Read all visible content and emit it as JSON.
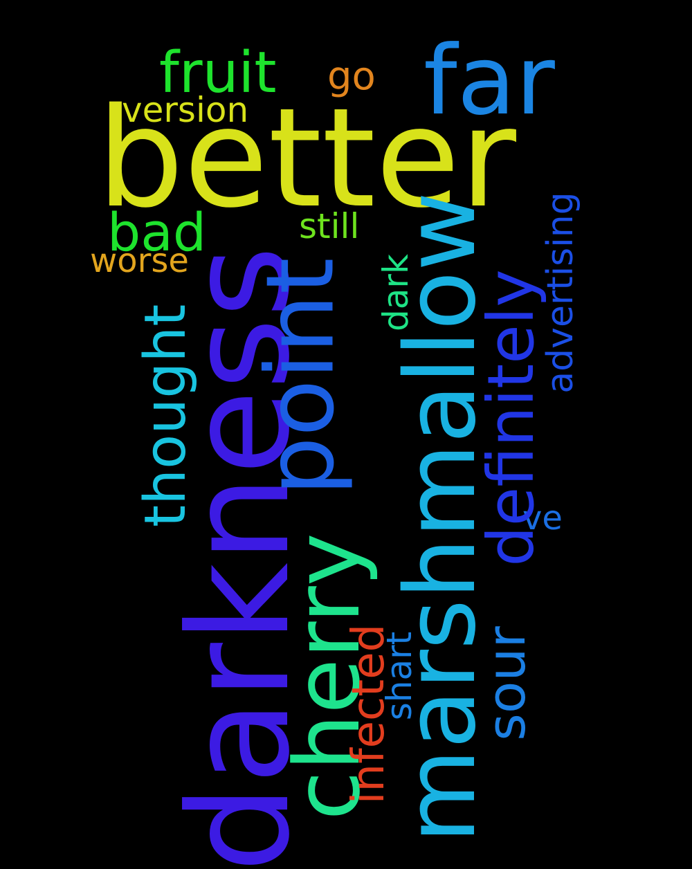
{
  "words": [
    {
      "text": "better",
      "color": "#d8e21a"
    },
    {
      "text": "darkness",
      "color": "#3c1be3"
    },
    {
      "text": "marshmallow",
      "color": "#19b2e2"
    },
    {
      "text": "point",
      "color": "#1b5fe3"
    },
    {
      "text": "cherry",
      "color": "#1ee38d"
    },
    {
      "text": "far",
      "color": "#1b85e3"
    },
    {
      "text": "fruit",
      "color": "#1ee32d"
    },
    {
      "text": "definitely",
      "color": "#2136e6"
    },
    {
      "text": "thought",
      "color": "#19c4e0"
    },
    {
      "text": "bad",
      "color": "#1ee32d"
    },
    {
      "text": "advertising",
      "color": "#1b4fe6"
    },
    {
      "text": "infected",
      "color": "#e23d1e"
    },
    {
      "text": "version",
      "color": "#d8e21a"
    },
    {
      "text": "sour",
      "color": "#1b7fe3"
    },
    {
      "text": "go",
      "color": "#e2851e"
    },
    {
      "text": "still",
      "color": "#6ee31e"
    },
    {
      "text": "worse",
      "color": "#e2a51e"
    },
    {
      "text": "dark",
      "color": "#1ee386"
    },
    {
      "text": "shart",
      "color": "#1b80e3"
    },
    {
      "text": "ve",
      "color": "#1b6fe3"
    }
  ]
}
